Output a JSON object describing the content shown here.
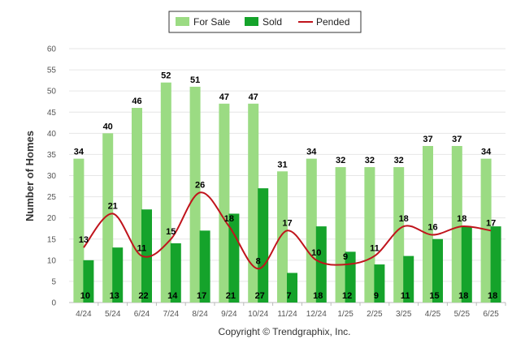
{
  "chart_data": {
    "type": "bar",
    "ylabel": "Number of Homes",
    "ylim": [
      0,
      60
    ],
    "yticks": [
      0,
      5,
      10,
      15,
      20,
      25,
      30,
      35,
      40,
      45,
      50,
      55,
      60
    ],
    "grid": true,
    "legend_position": "top-center",
    "categories": [
      "4/24",
      "5/24",
      "6/24",
      "7/24",
      "8/24",
      "9/24",
      "10/24",
      "11/24",
      "12/24",
      "1/25",
      "2/25",
      "3/25",
      "4/25",
      "5/25",
      "6/25"
    ],
    "series": [
      {
        "name": "For Sale",
        "kind": "bar",
        "color": "#9bdb83",
        "values": [
          34,
          40,
          46,
          52,
          51,
          47,
          47,
          31,
          34,
          32,
          32,
          32,
          37,
          37,
          34
        ]
      },
      {
        "name": "Sold",
        "kind": "bar",
        "color": "#15a32b",
        "values": [
          10,
          13,
          22,
          14,
          17,
          21,
          27,
          7,
          18,
          12,
          9,
          11,
          15,
          18,
          18
        ]
      },
      {
        "name": "Pended",
        "kind": "line",
        "color": "#c0141c",
        "values": [
          13,
          21,
          11,
          15,
          26,
          18,
          8,
          17,
          10,
          9,
          11,
          18,
          16,
          18,
          17
        ]
      }
    ]
  },
  "credit": "Copyright © Trendgraphix, Inc."
}
